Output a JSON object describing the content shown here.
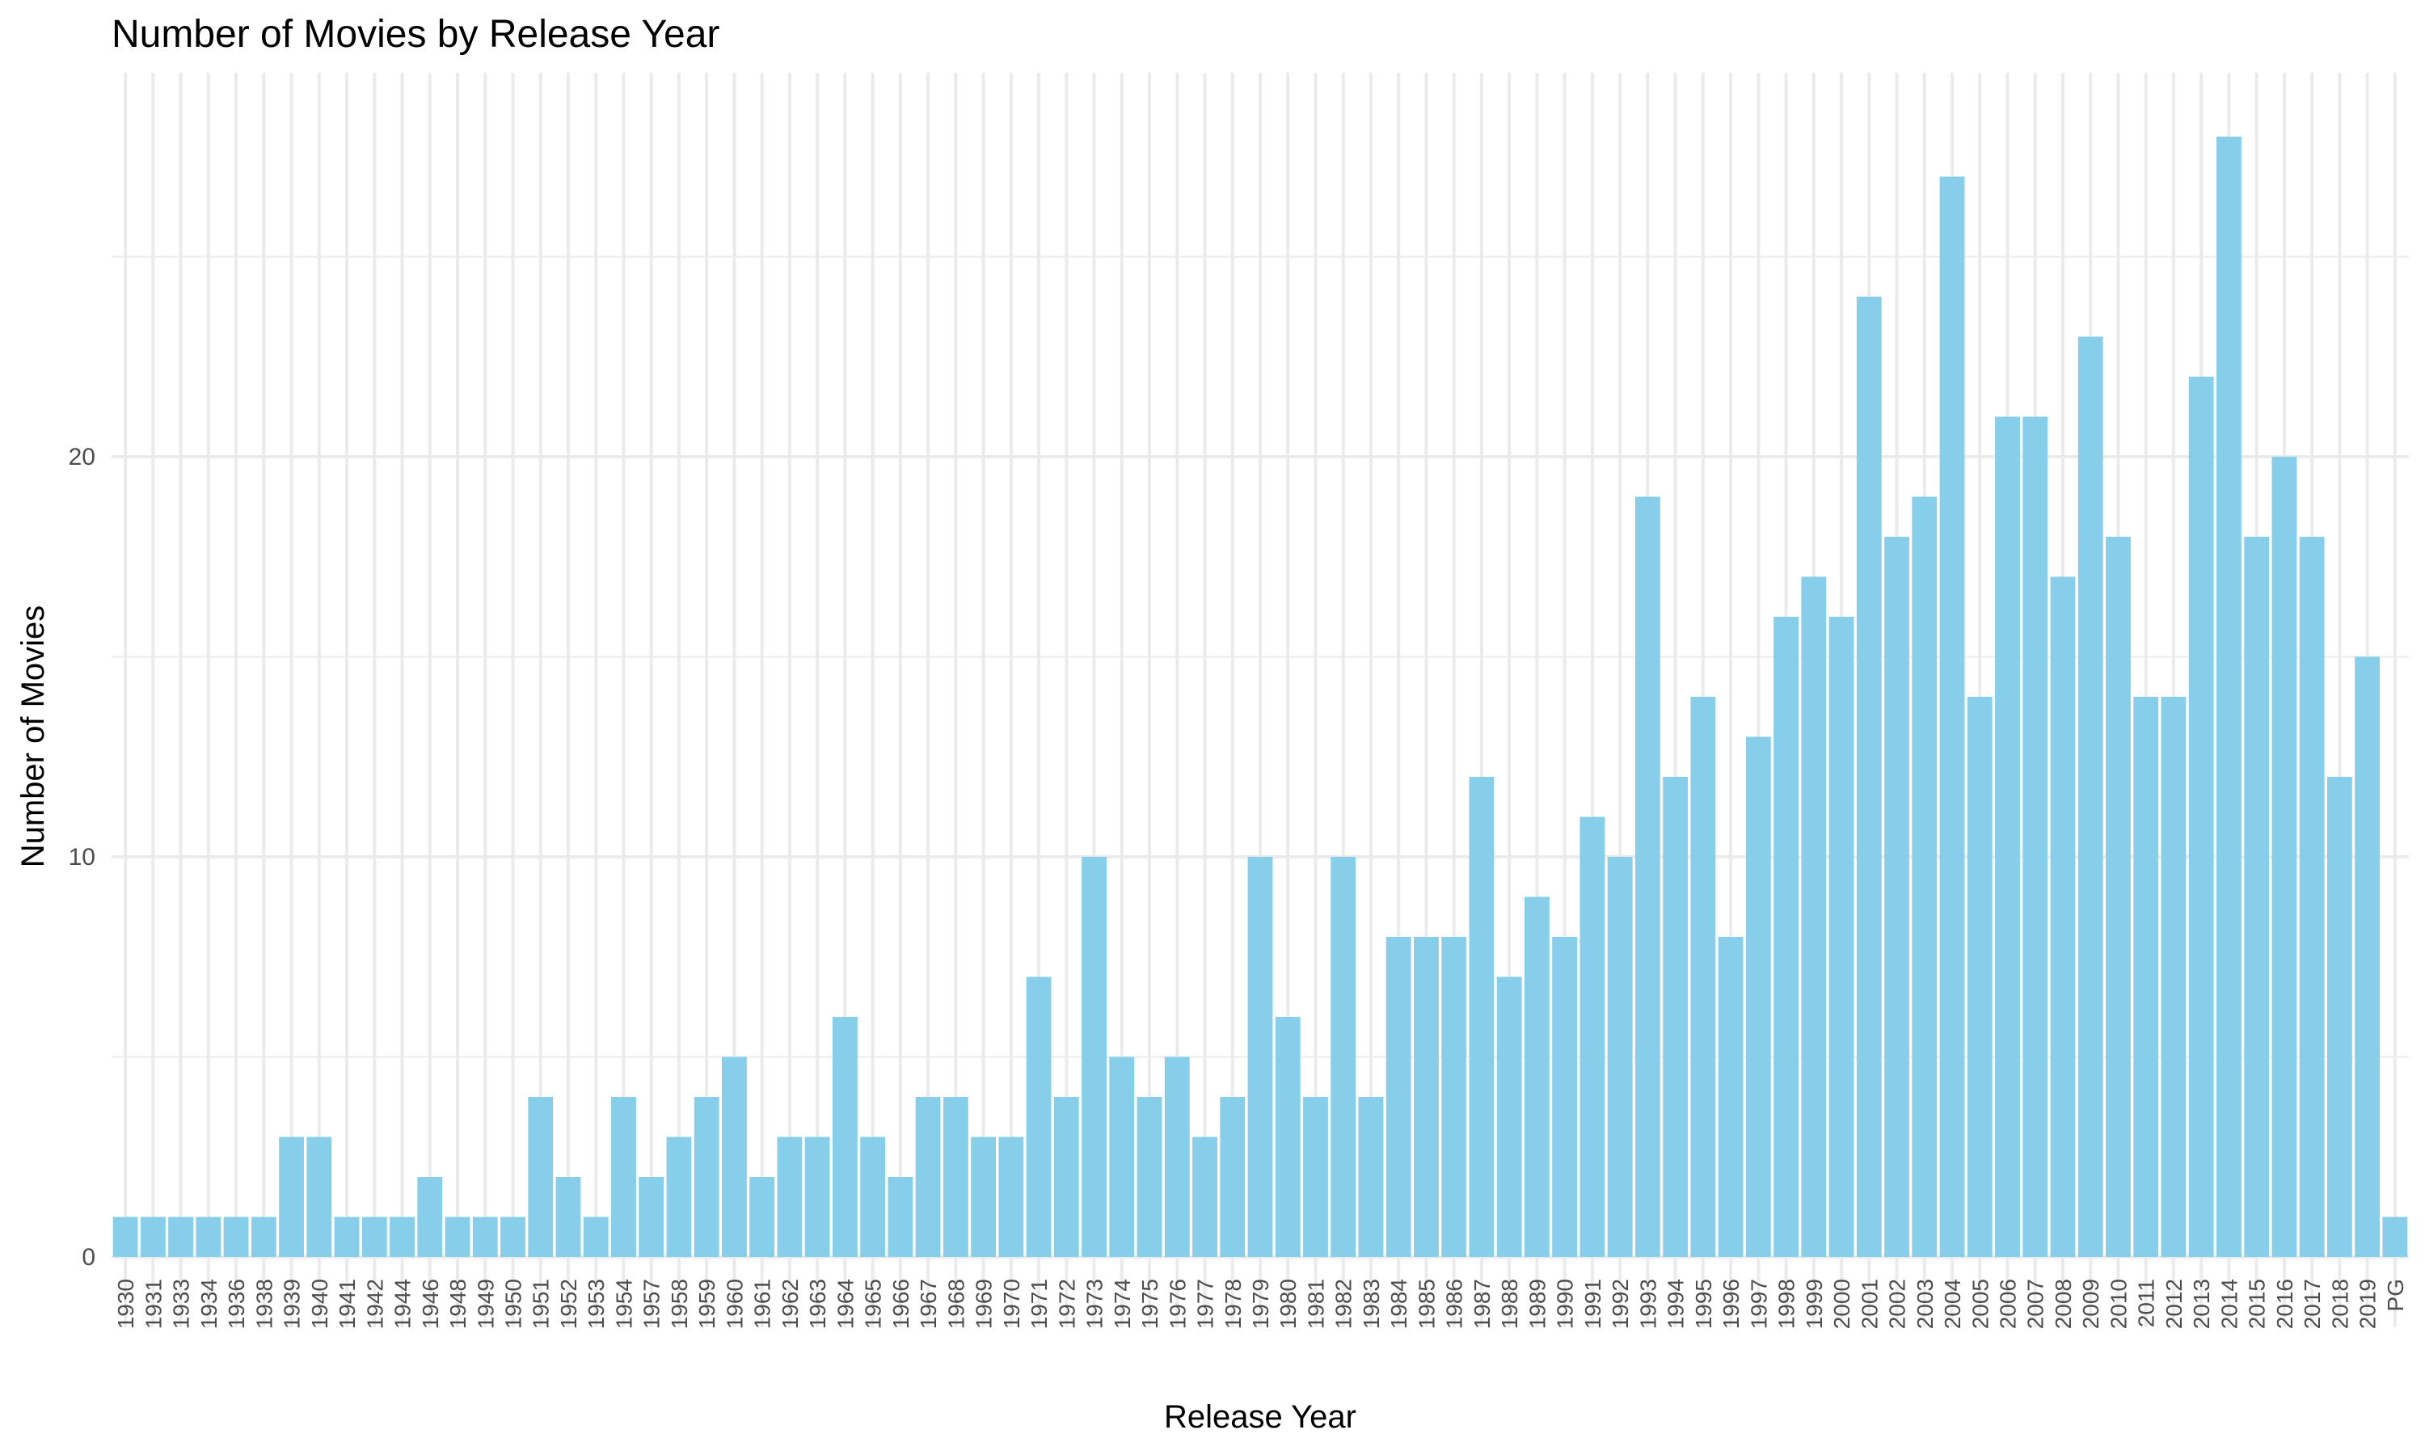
{
  "chart_data": {
    "type": "bar",
    "title": "Number of Movies by Release Year",
    "xlabel": "Release Year",
    "ylabel": "Number of Movies",
    "ylim": [
      0,
      28
    ],
    "yticks": [
      0,
      10,
      20
    ],
    "grid": true,
    "bar_color": "#87CEEB",
    "grid_color": "#ebebeb",
    "categories": [
      "1930",
      "1931",
      "1933",
      "1934",
      "1936",
      "1938",
      "1939",
      "1940",
      "1941",
      "1942",
      "1944",
      "1946",
      "1948",
      "1949",
      "1950",
      "1951",
      "1952",
      "1953",
      "1954",
      "1957",
      "1958",
      "1959",
      "1960",
      "1961",
      "1962",
      "1963",
      "1964",
      "1965",
      "1966",
      "1967",
      "1968",
      "1969",
      "1970",
      "1971",
      "1972",
      "1973",
      "1974",
      "1975",
      "1976",
      "1977",
      "1978",
      "1979",
      "1980",
      "1981",
      "1982",
      "1983",
      "1984",
      "1985",
      "1986",
      "1987",
      "1988",
      "1989",
      "1990",
      "1991",
      "1992",
      "1993",
      "1994",
      "1995",
      "1996",
      "1997",
      "1998",
      "1999",
      "2000",
      "2001",
      "2002",
      "2003",
      "2004",
      "2005",
      "2006",
      "2007",
      "2008",
      "2009",
      "2010",
      "2011",
      "2012",
      "2013",
      "2014",
      "2015",
      "2016",
      "2017",
      "2018",
      "2019",
      "PG"
    ],
    "values": [
      1,
      1,
      1,
      1,
      1,
      1,
      3,
      3,
      1,
      1,
      1,
      2,
      1,
      1,
      1,
      4,
      2,
      1,
      4,
      2,
      3,
      4,
      5,
      2,
      3,
      3,
      6,
      3,
      2,
      4,
      4,
      3,
      3,
      7,
      4,
      10,
      5,
      4,
      5,
      3,
      4,
      10,
      6,
      4,
      10,
      4,
      8,
      8,
      8,
      12,
      7,
      9,
      8,
      11,
      10,
      19,
      12,
      14,
      8,
      13,
      16,
      17,
      16,
      24,
      18,
      19,
      27,
      14,
      21,
      21,
      17,
      23,
      18,
      14,
      14,
      22,
      28,
      18,
      20,
      18,
      12,
      15,
      1
    ]
  }
}
